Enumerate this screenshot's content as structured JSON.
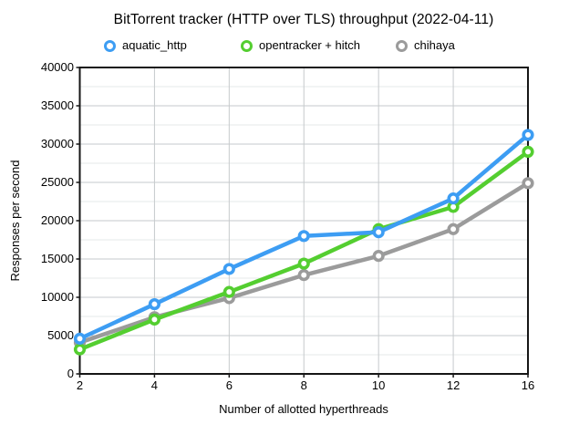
{
  "chart_data": {
    "type": "line",
    "title": "BitTorrent tracker (HTTP over TLS) throughput (2022-04-11)",
    "xlabel": "Number of allotted hyperthreads",
    "ylabel": "Responses per second",
    "categories": [
      "2",
      "4",
      "6",
      "8",
      "10",
      "12",
      "16"
    ],
    "series": [
      {
        "name": "aquatic_http",
        "color": "#3d9df3",
        "values": [
          4600,
          9100,
          13700,
          18000,
          18500,
          22900,
          31200
        ]
      },
      {
        "name": "opentracker + hitch",
        "color": "#54ce30",
        "values": [
          3200,
          7100,
          10700,
          14400,
          18900,
          21800,
          29000
        ]
      },
      {
        "name": "chihaya",
        "color": "#9b9b9b",
        "values": [
          4100,
          7400,
          9900,
          12900,
          15400,
          18900,
          24900
        ]
      }
    ],
    "ylim": [
      0,
      40000
    ],
    "ytick_step": 5000,
    "yminor_step": 2500,
    "grid": true,
    "legend_position": "top"
  },
  "style": {
    "major_grid_color": "#c6cacc",
    "minor_grid_color": "#e6e8e9",
    "axis_color": "#161616",
    "marker_fill": "#ffffff"
  }
}
